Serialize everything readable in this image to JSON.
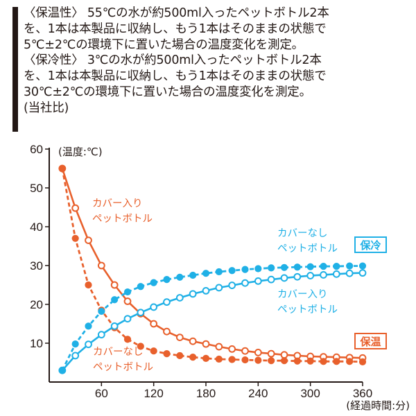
{
  "description": {
    "lines": [
      "〈保温性〉 55℃の水が約500ml入ったペットボトル2本",
      "を、1本は本製品に収納し、もう1本はそのままの状態で",
      "5℃±2℃の環境下に置いた場合の温度変化を測定。",
      "〈保冷性〉 3℃の水が約500ml入ったペットボトル2本",
      "を、1本は本製品に収納し、もう1本はそのままの状態で",
      "30℃±2℃の環境下に置いた場合の温度変化を測定。",
      "(当社比)"
    ]
  },
  "chart_data": {
    "type": "line",
    "ylabel": "(温度:℃)",
    "xlabel": "(経過時間:分)",
    "x_ticks": [
      "60",
      "120",
      "180",
      "240",
      "300",
      "360"
    ],
    "y_ticks": [
      "10",
      "20",
      "30",
      "40",
      "50",
      "60"
    ],
    "xlim": [
      0,
      360
    ],
    "ylim": [
      0,
      60
    ],
    "colors": {
      "warm": "#e8602c",
      "cool": "#1fb0e6"
    },
    "badges": {
      "cool": "保冷",
      "warm": "保温"
    },
    "annotations": {
      "warm_covered": [
        "カバー入り",
        "ペットボトル"
      ],
      "warm_uncovered": [
        "カバーなし",
        "ペットボトル"
      ],
      "cool_uncovered": [
        "カバーなし",
        "ペットボトル"
      ],
      "cool_covered": [
        "カバー入り",
        "ペットボトル"
      ]
    },
    "series": [
      {
        "key": "warm_covered",
        "color_key": "warm",
        "dashed": false,
        "x": [
          15,
          30,
          45,
          60,
          75,
          90,
          105,
          120,
          135,
          150,
          165,
          180,
          195,
          210,
          225,
          240,
          255,
          270,
          285,
          300,
          315,
          330,
          345,
          360
        ],
        "y": [
          55,
          44.8,
          36.5,
          30,
          25,
          20.8,
          17.6,
          15,
          13,
          11.5,
          10.5,
          9.8,
          9.1,
          8.5,
          8,
          7.6,
          7.3,
          7,
          6.8,
          6.6,
          6.5,
          6.4,
          6.3,
          6.2
        ]
      },
      {
        "key": "warm_uncovered",
        "color_key": "warm",
        "dashed": true,
        "x": [
          15,
          30,
          45,
          60,
          75,
          90,
          105,
          120,
          135,
          150,
          165,
          180,
          195,
          210,
          225,
          240,
          255,
          270,
          285,
          300,
          315,
          330,
          345,
          360
        ],
        "y": [
          55,
          37,
          25,
          18.5,
          14,
          11,
          9.2,
          8,
          7.3,
          6.8,
          6.4,
          6.1,
          5.9,
          5.8,
          5.7,
          5.6,
          5.5,
          5.5,
          5.4,
          5.4,
          5.3,
          5.3,
          5.3,
          5.2
        ]
      },
      {
        "key": "cool_covered",
        "color_key": "cool",
        "dashed": false,
        "x": [
          15,
          30,
          45,
          60,
          75,
          90,
          105,
          120,
          135,
          150,
          165,
          180,
          195,
          210,
          225,
          240,
          255,
          270,
          285,
          300,
          315,
          330,
          345,
          360
        ],
        "y": [
          3,
          6.8,
          9.7,
          12.2,
          14.4,
          16.3,
          17.9,
          19.3,
          20.6,
          21.7,
          22.7,
          23.5,
          24.3,
          24.9,
          25.5,
          26,
          26.4,
          26.8,
          27.1,
          27.4,
          27.6,
          27.8,
          28,
          28.1
        ]
      },
      {
        "key": "cool_uncovered",
        "color_key": "cool",
        "dashed": true,
        "x": [
          15,
          30,
          45,
          60,
          75,
          90,
          105,
          120,
          135,
          150,
          165,
          180,
          195,
          210,
          225,
          240,
          255,
          270,
          285,
          300,
          315,
          330,
          345,
          360
        ],
        "y": [
          3,
          9.8,
          14.4,
          18.2,
          21.2,
          23.2,
          24.6,
          25.6,
          26.4,
          27,
          27.5,
          28,
          28.4,
          28.7,
          29,
          29.2,
          29.4,
          29.5,
          29.6,
          29.7,
          29.8,
          29.8,
          29.9,
          29.9
        ]
      }
    ]
  }
}
